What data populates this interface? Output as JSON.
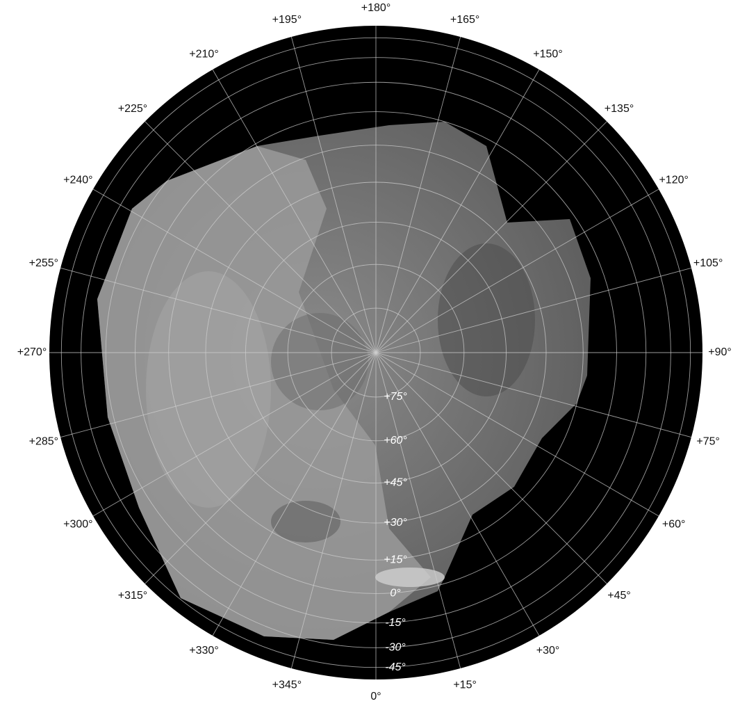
{
  "map": {
    "longitude_labels": [
      {
        "value": 0,
        "label": "0°"
      },
      {
        "value": 15,
        "label": "+15°"
      },
      {
        "value": 30,
        "label": "+30°"
      },
      {
        "value": 45,
        "label": "+45°"
      },
      {
        "value": 60,
        "label": "+60°"
      },
      {
        "value": 75,
        "label": "+75°"
      },
      {
        "value": 90,
        "label": "+90°"
      },
      {
        "value": 105,
        "label": "+105°"
      },
      {
        "value": 120,
        "label": "+120°"
      },
      {
        "value": 135,
        "label": "+135°"
      },
      {
        "value": 150,
        "label": "+150°"
      },
      {
        "value": 165,
        "label": "+165°"
      },
      {
        "value": 180,
        "label": "+180°"
      },
      {
        "value": 195,
        "label": "+195°"
      },
      {
        "value": 210,
        "label": "+210°"
      },
      {
        "value": 225,
        "label": "+225°"
      },
      {
        "value": 240,
        "label": "+240°"
      },
      {
        "value": 255,
        "label": "+255°"
      },
      {
        "value": 270,
        "label": "+270°"
      },
      {
        "value": 285,
        "label": "+285°"
      },
      {
        "value": 300,
        "label": "+300°"
      },
      {
        "value": 315,
        "label": "+315°"
      },
      {
        "value": 330,
        "label": "+330°"
      },
      {
        "value": 345,
        "label": "+345°"
      }
    ],
    "latitude_labels": [
      {
        "value": 75,
        "label": "+75°"
      },
      {
        "value": 60,
        "label": "+60°"
      },
      {
        "value": 45,
        "label": "+45°"
      },
      {
        "value": 30,
        "label": "+30°"
      },
      {
        "value": 15,
        "label": "+15°"
      },
      {
        "value": 0,
        "label": "0°"
      },
      {
        "value": -15,
        "label": "-15°"
      },
      {
        "value": -30,
        "label": "-30°"
      },
      {
        "value": -45,
        "label": "-45°"
      }
    ]
  }
}
